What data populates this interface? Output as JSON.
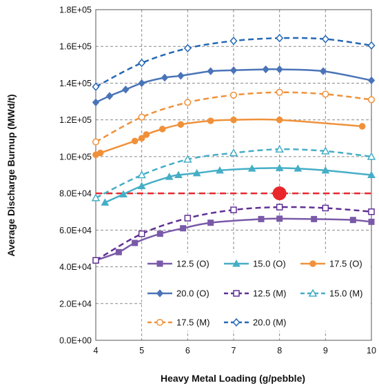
{
  "chart_data": {
    "type": "line",
    "xlabel": "Heavy Metal Loading (g/pebble)",
    "ylabel": "Average Discharge Burnup (MWd/t)",
    "xlim": [
      4,
      10
    ],
    "ylim": [
      0,
      180000
    ],
    "x_ticks": [
      4,
      5,
      6,
      7,
      8,
      9,
      10
    ],
    "y_ticks": [
      0,
      20000,
      40000,
      60000,
      80000,
      100000,
      120000,
      140000,
      160000,
      180000
    ],
    "y_tick_labels": [
      "0.0E+00",
      "2.0E+04",
      "4.0E+04",
      "6.0E+04",
      "8.0E+04",
      "1.0E+05",
      "1.2E+05",
      "1.4E+05",
      "1.6E+05",
      "1.8E+05"
    ],
    "grid": true,
    "legend_position": "lower-right",
    "series": [
      {
        "name": "12.5 (O)",
        "color": "#7a5aa8",
        "dash": false,
        "marker": "square-filled",
        "points": [
          [
            4.0,
            43500
          ],
          [
            4.5,
            48000
          ],
          [
            4.85,
            53000
          ],
          [
            5.4,
            58000
          ],
          [
            5.9,
            61000
          ],
          [
            6.5,
            64000
          ],
          [
            7.6,
            66000
          ],
          [
            8.0,
            66200
          ],
          [
            8.75,
            66000
          ],
          [
            9.6,
            65500
          ],
          [
            10.0,
            64500
          ]
        ]
      },
      {
        "name": "15.0 (O)",
        "color": "#45aec6",
        "dash": false,
        "marker": "triangle-filled",
        "points": [
          [
            4.2,
            75000
          ],
          [
            4.6,
            79500
          ],
          [
            5.0,
            84000
          ],
          [
            5.6,
            89000
          ],
          [
            5.8,
            90000
          ],
          [
            6.2,
            91000
          ],
          [
            6.7,
            92500
          ],
          [
            7.4,
            93500
          ],
          [
            8.0,
            93800
          ],
          [
            8.4,
            93500
          ],
          [
            9.0,
            92500
          ],
          [
            10.0,
            90000
          ]
        ]
      },
      {
        "name": "17.5 (O)",
        "color": "#f0913a",
        "dash": false,
        "marker": "circle-filled",
        "points": [
          [
            4.0,
            101000
          ],
          [
            4.1,
            102000
          ],
          [
            4.85,
            108500
          ],
          [
            5.0,
            110000
          ],
          [
            5.1,
            112000
          ],
          [
            5.45,
            115000
          ],
          [
            5.85,
            117500
          ],
          [
            6.5,
            119500
          ],
          [
            7.0,
            120000
          ],
          [
            8.0,
            120000
          ],
          [
            9.8,
            116500
          ]
        ]
      },
      {
        "name": "20.0 (O)",
        "color": "#4a74b8",
        "dash": false,
        "marker": "diamond-filled",
        "points": [
          [
            4.0,
            129500
          ],
          [
            4.3,
            133000
          ],
          [
            4.65,
            136500
          ],
          [
            5.0,
            140000
          ],
          [
            5.5,
            143000
          ],
          [
            5.85,
            144000
          ],
          [
            6.5,
            146500
          ],
          [
            7.0,
            147000
          ],
          [
            7.7,
            147500
          ],
          [
            8.0,
            147500
          ],
          [
            8.95,
            146500
          ],
          [
            10.0,
            141500
          ]
        ]
      },
      {
        "name": "12.5 (M)",
        "color": "#5f2f94",
        "dash": true,
        "marker": "square-open",
        "points": [
          [
            4.0,
            43500
          ],
          [
            5.0,
            58000
          ],
          [
            6.0,
            66500
          ],
          [
            7.0,
            71000
          ],
          [
            8.0,
            72500
          ],
          [
            9.0,
            72000
          ],
          [
            10.0,
            70000
          ]
        ]
      },
      {
        "name": "15.0 (M)",
        "color": "#45aec6",
        "dash": true,
        "marker": "triangle-open",
        "points": [
          [
            4.0,
            77500
          ],
          [
            5.0,
            90000
          ],
          [
            6.0,
            98500
          ],
          [
            7.0,
            102000
          ],
          [
            8.0,
            104000
          ],
          [
            9.0,
            103000
          ],
          [
            10.0,
            100000
          ]
        ]
      },
      {
        "name": "17.5 (M)",
        "color": "#f0913a",
        "dash": true,
        "marker": "circle-open",
        "points": [
          [
            4.0,
            108000
          ],
          [
            5.0,
            121500
          ],
          [
            6.0,
            129500
          ],
          [
            7.0,
            133500
          ],
          [
            8.0,
            135000
          ],
          [
            9.0,
            134000
          ],
          [
            10.0,
            131000
          ]
        ]
      },
      {
        "name": "20.0 (M)",
        "color": "#2567b5",
        "dash": true,
        "marker": "diamond-open",
        "points": [
          [
            4.0,
            138000
          ],
          [
            5.0,
            151000
          ],
          [
            6.0,
            159000
          ],
          [
            7.0,
            163000
          ],
          [
            8.0,
            164500
          ],
          [
            9.0,
            164000
          ],
          [
            10.0,
            160500
          ]
        ]
      }
    ],
    "reference_line": {
      "y": 80000,
      "color": "#e8262c",
      "dash": true
    },
    "highlight_point": {
      "x": 8.0,
      "y": 80000,
      "color": "#e8262c"
    }
  }
}
